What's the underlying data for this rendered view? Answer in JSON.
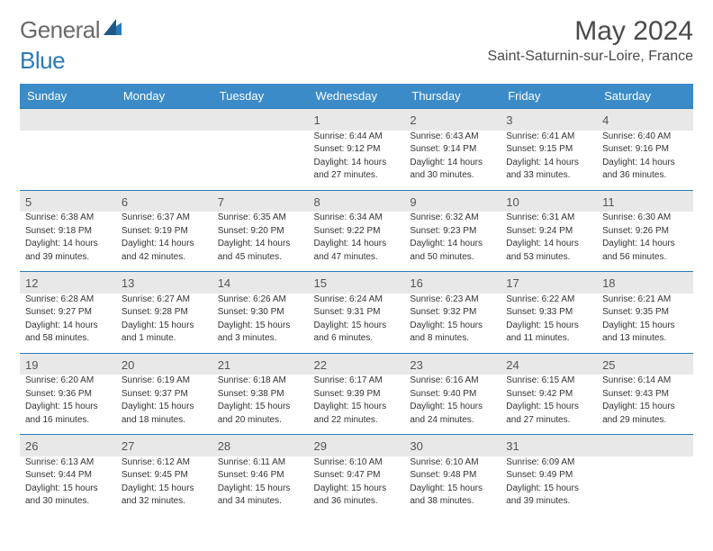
{
  "brand": {
    "part1": "General",
    "part2": "Blue"
  },
  "title": "May 2024",
  "location": "Saint-Saturnin-sur-Loire, France",
  "colors": {
    "header_bg": "#3b8bc8",
    "border": "#2a7ab8",
    "daynum_bg": "#e8e8e8",
    "text": "#333333",
    "logo_gray": "#6a6a6a",
    "logo_blue": "#2a7ab8",
    "title_color": "#4a4a4a"
  },
  "day_headers": [
    "Sunday",
    "Monday",
    "Tuesday",
    "Wednesday",
    "Thursday",
    "Friday",
    "Saturday"
  ],
  "weeks": [
    [
      null,
      null,
      null,
      {
        "n": "1",
        "sr": "Sunrise: 6:44 AM",
        "ss": "Sunset: 9:12 PM",
        "d1": "Daylight: 14 hours",
        "d2": "and 27 minutes."
      },
      {
        "n": "2",
        "sr": "Sunrise: 6:43 AM",
        "ss": "Sunset: 9:14 PM",
        "d1": "Daylight: 14 hours",
        "d2": "and 30 minutes."
      },
      {
        "n": "3",
        "sr": "Sunrise: 6:41 AM",
        "ss": "Sunset: 9:15 PM",
        "d1": "Daylight: 14 hours",
        "d2": "and 33 minutes."
      },
      {
        "n": "4",
        "sr": "Sunrise: 6:40 AM",
        "ss": "Sunset: 9:16 PM",
        "d1": "Daylight: 14 hours",
        "d2": "and 36 minutes."
      }
    ],
    [
      {
        "n": "5",
        "sr": "Sunrise: 6:38 AM",
        "ss": "Sunset: 9:18 PM",
        "d1": "Daylight: 14 hours",
        "d2": "and 39 minutes."
      },
      {
        "n": "6",
        "sr": "Sunrise: 6:37 AM",
        "ss": "Sunset: 9:19 PM",
        "d1": "Daylight: 14 hours",
        "d2": "and 42 minutes."
      },
      {
        "n": "7",
        "sr": "Sunrise: 6:35 AM",
        "ss": "Sunset: 9:20 PM",
        "d1": "Daylight: 14 hours",
        "d2": "and 45 minutes."
      },
      {
        "n": "8",
        "sr": "Sunrise: 6:34 AM",
        "ss": "Sunset: 9:22 PM",
        "d1": "Daylight: 14 hours",
        "d2": "and 47 minutes."
      },
      {
        "n": "9",
        "sr": "Sunrise: 6:32 AM",
        "ss": "Sunset: 9:23 PM",
        "d1": "Daylight: 14 hours",
        "d2": "and 50 minutes."
      },
      {
        "n": "10",
        "sr": "Sunrise: 6:31 AM",
        "ss": "Sunset: 9:24 PM",
        "d1": "Daylight: 14 hours",
        "d2": "and 53 minutes."
      },
      {
        "n": "11",
        "sr": "Sunrise: 6:30 AM",
        "ss": "Sunset: 9:26 PM",
        "d1": "Daylight: 14 hours",
        "d2": "and 56 minutes."
      }
    ],
    [
      {
        "n": "12",
        "sr": "Sunrise: 6:28 AM",
        "ss": "Sunset: 9:27 PM",
        "d1": "Daylight: 14 hours",
        "d2": "and 58 minutes."
      },
      {
        "n": "13",
        "sr": "Sunrise: 6:27 AM",
        "ss": "Sunset: 9:28 PM",
        "d1": "Daylight: 15 hours",
        "d2": "and 1 minute."
      },
      {
        "n": "14",
        "sr": "Sunrise: 6:26 AM",
        "ss": "Sunset: 9:30 PM",
        "d1": "Daylight: 15 hours",
        "d2": "and 3 minutes."
      },
      {
        "n": "15",
        "sr": "Sunrise: 6:24 AM",
        "ss": "Sunset: 9:31 PM",
        "d1": "Daylight: 15 hours",
        "d2": "and 6 minutes."
      },
      {
        "n": "16",
        "sr": "Sunrise: 6:23 AM",
        "ss": "Sunset: 9:32 PM",
        "d1": "Daylight: 15 hours",
        "d2": "and 8 minutes."
      },
      {
        "n": "17",
        "sr": "Sunrise: 6:22 AM",
        "ss": "Sunset: 9:33 PM",
        "d1": "Daylight: 15 hours",
        "d2": "and 11 minutes."
      },
      {
        "n": "18",
        "sr": "Sunrise: 6:21 AM",
        "ss": "Sunset: 9:35 PM",
        "d1": "Daylight: 15 hours",
        "d2": "and 13 minutes."
      }
    ],
    [
      {
        "n": "19",
        "sr": "Sunrise: 6:20 AM",
        "ss": "Sunset: 9:36 PM",
        "d1": "Daylight: 15 hours",
        "d2": "and 16 minutes."
      },
      {
        "n": "20",
        "sr": "Sunrise: 6:19 AM",
        "ss": "Sunset: 9:37 PM",
        "d1": "Daylight: 15 hours",
        "d2": "and 18 minutes."
      },
      {
        "n": "21",
        "sr": "Sunrise: 6:18 AM",
        "ss": "Sunset: 9:38 PM",
        "d1": "Daylight: 15 hours",
        "d2": "and 20 minutes."
      },
      {
        "n": "22",
        "sr": "Sunrise: 6:17 AM",
        "ss": "Sunset: 9:39 PM",
        "d1": "Daylight: 15 hours",
        "d2": "and 22 minutes."
      },
      {
        "n": "23",
        "sr": "Sunrise: 6:16 AM",
        "ss": "Sunset: 9:40 PM",
        "d1": "Daylight: 15 hours",
        "d2": "and 24 minutes."
      },
      {
        "n": "24",
        "sr": "Sunrise: 6:15 AM",
        "ss": "Sunset: 9:42 PM",
        "d1": "Daylight: 15 hours",
        "d2": "and 27 minutes."
      },
      {
        "n": "25",
        "sr": "Sunrise: 6:14 AM",
        "ss": "Sunset: 9:43 PM",
        "d1": "Daylight: 15 hours",
        "d2": "and 29 minutes."
      }
    ],
    [
      {
        "n": "26",
        "sr": "Sunrise: 6:13 AM",
        "ss": "Sunset: 9:44 PM",
        "d1": "Daylight: 15 hours",
        "d2": "and 30 minutes."
      },
      {
        "n": "27",
        "sr": "Sunrise: 6:12 AM",
        "ss": "Sunset: 9:45 PM",
        "d1": "Daylight: 15 hours",
        "d2": "and 32 minutes."
      },
      {
        "n": "28",
        "sr": "Sunrise: 6:11 AM",
        "ss": "Sunset: 9:46 PM",
        "d1": "Daylight: 15 hours",
        "d2": "and 34 minutes."
      },
      {
        "n": "29",
        "sr": "Sunrise: 6:10 AM",
        "ss": "Sunset: 9:47 PM",
        "d1": "Daylight: 15 hours",
        "d2": "and 36 minutes."
      },
      {
        "n": "30",
        "sr": "Sunrise: 6:10 AM",
        "ss": "Sunset: 9:48 PM",
        "d1": "Daylight: 15 hours",
        "d2": "and 38 minutes."
      },
      {
        "n": "31",
        "sr": "Sunrise: 6:09 AM",
        "ss": "Sunset: 9:49 PM",
        "d1": "Daylight: 15 hours",
        "d2": "and 39 minutes."
      },
      null
    ]
  ]
}
